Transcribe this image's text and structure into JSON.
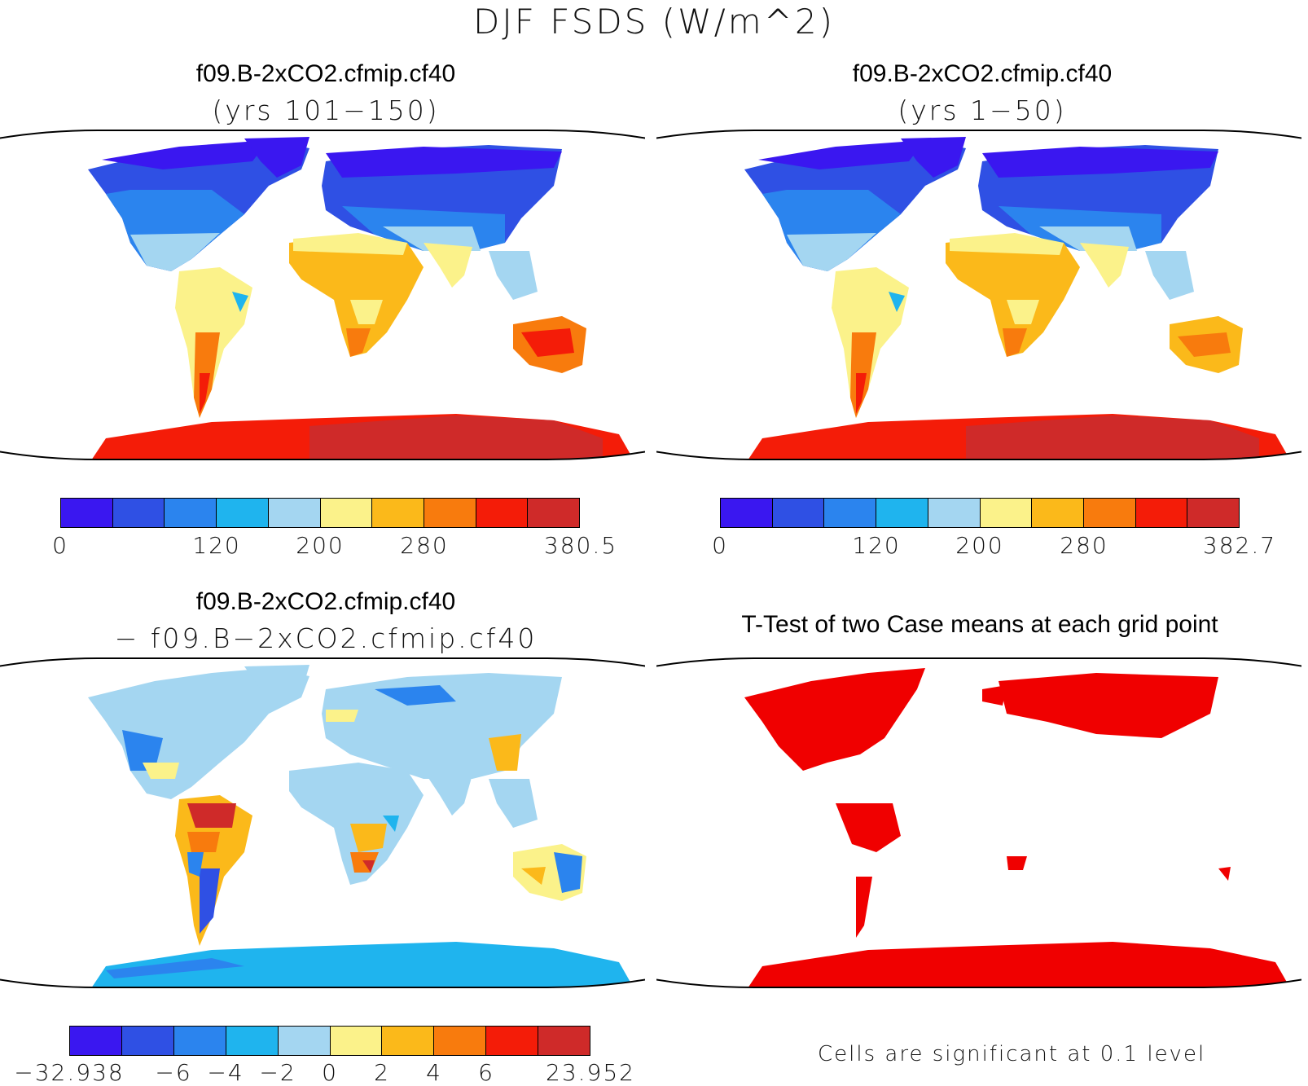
{
  "title": "DJF FSDS (W/m^2)",
  "panels": {
    "top_left": {
      "title": "f09.B-2xCO2.cfmip.cf40",
      "subtitle": "(yrs 101−150)"
    },
    "top_right": {
      "title": "f09.B-2xCO2.cfmip.cf40",
      "subtitle": "(yrs 1−50)"
    },
    "bottom_left": {
      "title": "f09.B-2xCO2.cfmip.cf40",
      "subtitle": "− f09.B−2xCO2.cfmip.cf40"
    },
    "bottom_right": {
      "title": "T-Test of two Case means at each grid point",
      "note": "Cells are significant at 0.1 level"
    }
  },
  "colors": {
    "abs_scale": [
      "#3a17f0",
      "#2f50e4",
      "#2b84ee",
      "#1fb4ee",
      "#a4d6f1",
      "#fbf28a",
      "#fbb91a",
      "#f87b0d",
      "#f41c08",
      "#cf2a29"
    ],
    "diff_scale": [
      "#3a17f0",
      "#2f50e4",
      "#2b84ee",
      "#1fb4ee",
      "#a4d6f1",
      "#fbf28a",
      "#fbb91a",
      "#f87b0d",
      "#f41c08",
      "#cf2a29"
    ],
    "significant": "#f00000",
    "coastline": "#000000"
  },
  "colorbars": {
    "top_left": {
      "labels": [
        "0",
        "120",
        "200",
        "280",
        "380.5"
      ]
    },
    "top_right": {
      "labels": [
        "0",
        "120",
        "200",
        "280",
        "382.7"
      ]
    },
    "bottom_left": {
      "labels": [
        "−32.938",
        "−6",
        "−4",
        "−2",
        "0",
        "2",
        "4",
        "6",
        "23.952"
      ]
    }
  }
}
